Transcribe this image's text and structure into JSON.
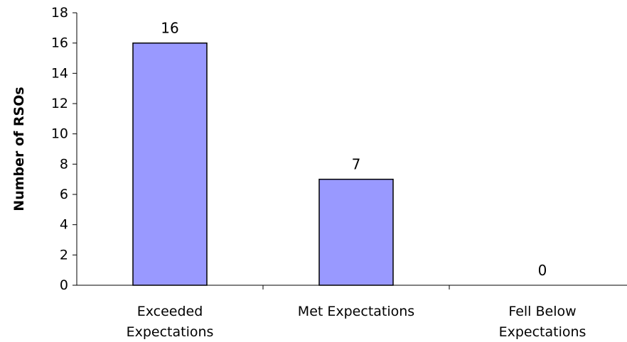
{
  "chart_data": {
    "type": "bar",
    "categories": [
      [
        "Exceeded",
        "Expectations"
      ],
      [
        "Met Expectations"
      ],
      [
        "Fell Below",
        "Expectations"
      ]
    ],
    "values": [
      16,
      7,
      0
    ],
    "data_labels": [
      "16",
      "7",
      "0"
    ],
    "ylabel": "Number of RSOs",
    "ylim": [
      0,
      18
    ],
    "yticks": [
      0,
      2,
      4,
      6,
      8,
      10,
      12,
      14,
      16,
      18
    ],
    "grid": false,
    "legend": "none",
    "bar_color": "#9999FF",
    "bar_edge_color": "#000000"
  }
}
